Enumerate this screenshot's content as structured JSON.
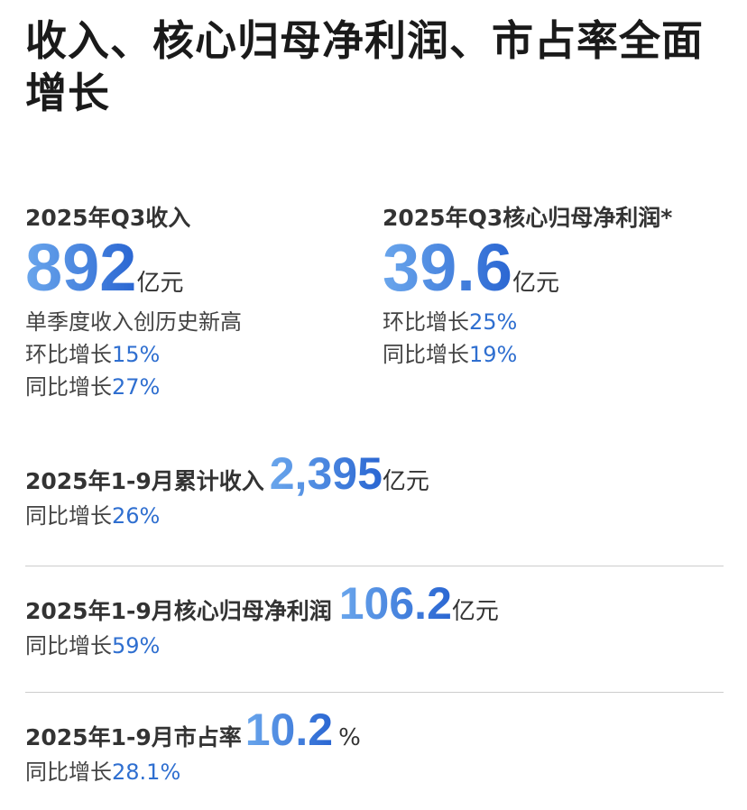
{
  "title": "收入、核心归母净利润、市占率全面增长",
  "q3_revenue": {
    "label": "2025年Q3收入",
    "value": "892",
    "unit": "亿元",
    "note": "单季度收入创历史新高",
    "qoq_label": "环比增长",
    "qoq": "15%",
    "yoy_label": "同比增长",
    "yoy": "27%"
  },
  "q3_profit": {
    "label": "2025年Q3核心归母净利润*",
    "value": "39.6",
    "unit": "亿元",
    "qoq_label": "环比增长",
    "qoq": "25%",
    "yoy_label": "同比增长",
    "yoy": "19%"
  },
  "ytd_revenue": {
    "label": "2025年1-9月累计收入",
    "value": "2,395",
    "unit": "亿元",
    "yoy_label": "同比增长",
    "yoy": "26%"
  },
  "ytd_profit": {
    "label": "2025年1-9月核心归母净利润",
    "value": "106.2",
    "unit": "亿元",
    "yoy_label": "同比增长",
    "yoy": "59%"
  },
  "ytd_share": {
    "label": "2025年1-9月市占率",
    "value": "10.2",
    "unit": "%",
    "yoy_label": "同比增长",
    "yoy": "28.1%"
  },
  "colors": {
    "accent": "#2f6fd0",
    "text": "#333333"
  }
}
